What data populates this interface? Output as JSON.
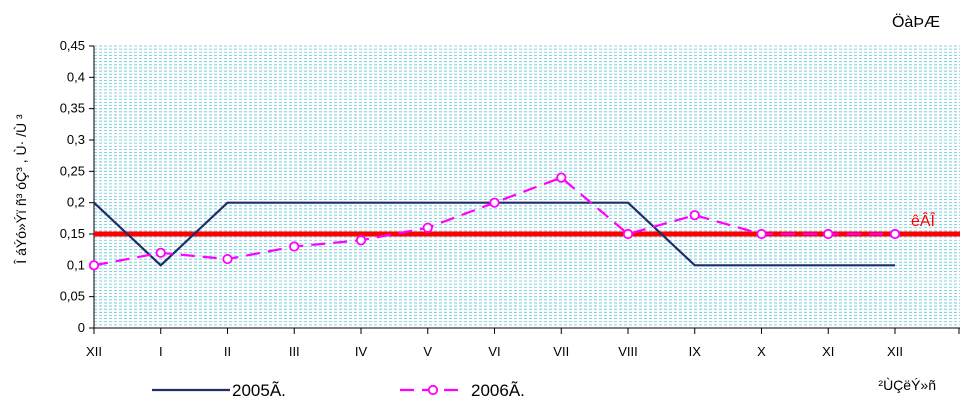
{
  "chart_data": {
    "type": "line",
    "title": "ÖàÞÆ",
    "xlabel": "²ÙÇëÝ»ñ",
    "ylabel": "Î áÝó»Ýï ñ³ óÇ³ , Ù· /Ù ³",
    "categories": [
      "XII",
      "I",
      "II",
      "III",
      "IV",
      "V",
      "VI",
      "VII",
      "VIII",
      "IX",
      "X",
      "XI",
      "XII"
    ],
    "y_ticks": [
      "0",
      "0,05",
      "0,1",
      "0,15",
      "0,2",
      "0,25",
      "0,3",
      "0,35",
      "0,4",
      "0,45"
    ],
    "ylim": [
      0,
      0.45
    ],
    "grid": true,
    "legend_position": "bottom",
    "series": [
      {
        "name": "2005Ã.",
        "values": [
          0.2,
          0.1,
          0.2,
          0.2,
          0.2,
          0.2,
          0.2,
          0.2,
          0.2,
          0.1,
          0.1,
          0.1,
          0.1
        ],
        "color": "#1f2d6b",
        "style": "solid",
        "marker": "none"
      },
      {
        "name": "2006Ã.",
        "values": [
          0.1,
          0.12,
          0.11,
          0.13,
          0.14,
          0.16,
          0.2,
          0.24,
          0.15,
          0.18,
          0.15,
          0.15,
          0.15
        ],
        "color": "#ff00ff",
        "style": "dashed",
        "marker": "circle"
      }
    ],
    "reference_line": {
      "label": "êÂÎ",
      "value": 0.15,
      "color": "#ff0000"
    },
    "grid_color": "#61c6d9"
  }
}
